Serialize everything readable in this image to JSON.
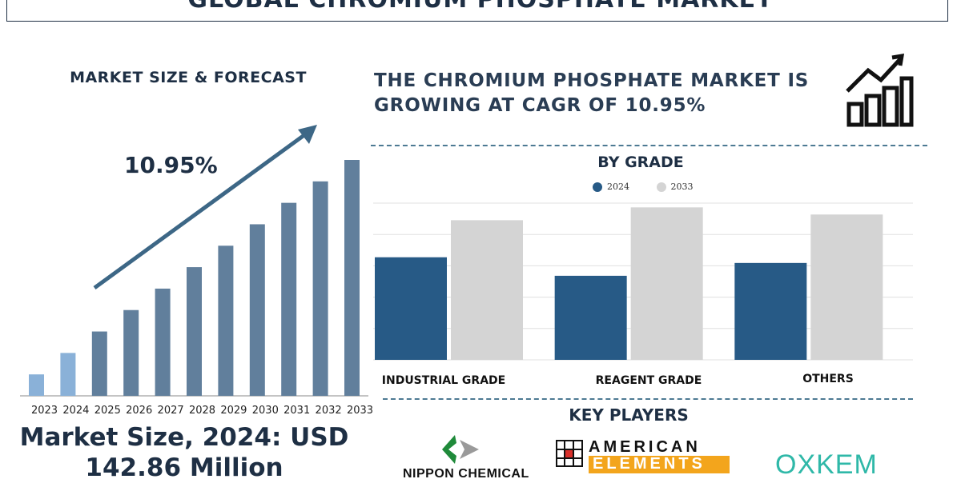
{
  "title": "GLOBAL CHROMIUM PHOSPHATE MARKET",
  "left_panel": {
    "heading": "MARKET SIZE & FORECAST",
    "cagr_label": "10.95%",
    "market_size_line1": "Market Size, 2024: USD",
    "market_size_line2": "142.86 Million"
  },
  "headline": {
    "line1": "THE CHROMIUM PHOSPHATE MARKET IS",
    "line2": "GROWING AT CAGR OF 10.95%"
  },
  "grade_panel": {
    "title": "BY GRADE",
    "legend": [
      "2024",
      "2033"
    ]
  },
  "key_players": {
    "title": "KEY PLAYERS",
    "names": [
      "NIPPON CHEMICAL",
      "AMERICAN",
      "ELEMENTS",
      "OXKEM"
    ]
  },
  "colors": {
    "navy": "#1e2f44",
    "series_2024": "#275a86",
    "series_2033": "#d4d4d4",
    "forecast_bar": "#617f9c",
    "historic_bar": "#8ab1d8",
    "accent_orange": "#f3a51c",
    "oxkem_teal": "#2fb8a8"
  },
  "chart_data": [
    {
      "type": "bar",
      "categories": [
        "2023",
        "2024",
        "2025",
        "2026",
        "2027",
        "2028",
        "2029",
        "2030",
        "2031",
        "2032",
        "2033"
      ],
      "values": [
        1.0,
        2.0,
        3.0,
        4.0,
        5.0,
        6.0,
        7.0,
        8.0,
        9.0,
        10.0,
        11.0
      ],
      "title": "MARKET SIZE & FORECAST",
      "annotation": "10.95%",
      "grid": false
    },
    {
      "type": "bar",
      "title": "BY GRADE",
      "categories": [
        "INDUSTRIAL GRADE",
        "REAGENT GRADE",
        "OTHERS"
      ],
      "series": [
        {
          "name": "2024",
          "values": [
            7.2,
            5.9,
            6.8
          ]
        },
        {
          "name": "2033",
          "values": [
            9.8,
            10.7,
            10.2
          ]
        }
      ],
      "ylim": [
        0,
        11
      ],
      "grid": true,
      "legend": "top-center"
    }
  ]
}
